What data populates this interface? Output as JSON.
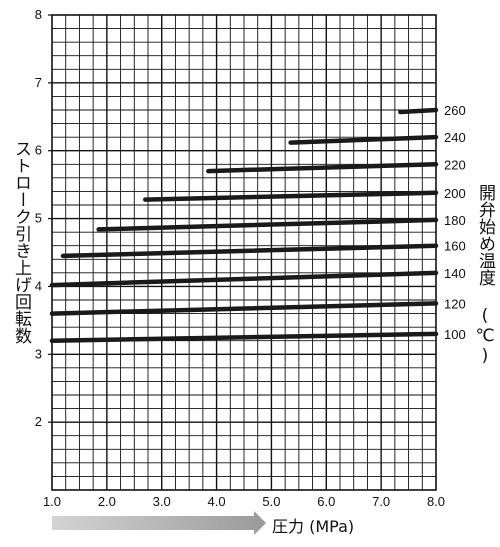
{
  "chart_data": {
    "type": "line",
    "xlabel": "圧力 (MPa)",
    "ylabel": "ストローク引き上げ回転数",
    "legend_title": "開弁始め温度 (℃)",
    "xlim": [
      1.0,
      8.0
    ],
    "ylim": [
      1,
      8
    ],
    "x_ticks": [
      "1.0",
      "2.0",
      "3.0",
      "4.0",
      "5.0",
      "6.0",
      "7.0",
      "8.0"
    ],
    "y_ticks": [
      "2",
      "3",
      "4",
      "5",
      "6",
      "7",
      "8"
    ],
    "grid": true,
    "series": [
      {
        "name": "100",
        "x": [
          1.0,
          8.0
        ],
        "y": [
          3.2,
          3.3
        ]
      },
      {
        "name": "120",
        "x": [
          1.0,
          8.0
        ],
        "y": [
          3.6,
          3.75
        ]
      },
      {
        "name": "140",
        "x": [
          1.0,
          8.0
        ],
        "y": [
          4.02,
          4.2
        ]
      },
      {
        "name": "160",
        "x": [
          1.2,
          8.0
        ],
        "y": [
          4.45,
          4.6
        ]
      },
      {
        "name": "180",
        "x": [
          1.85,
          8.0
        ],
        "y": [
          4.84,
          4.98
        ]
      },
      {
        "name": "200",
        "x": [
          2.7,
          8.0
        ],
        "y": [
          5.28,
          5.38
        ]
      },
      {
        "name": "220",
        "x": [
          3.85,
          8.0
        ],
        "y": [
          5.7,
          5.8
        ]
      },
      {
        "name": "240",
        "x": [
          5.35,
          8.0
        ],
        "y": [
          6.12,
          6.2
        ]
      },
      {
        "name": "260",
        "x": [
          7.35,
          8.0
        ],
        "y": [
          6.57,
          6.6
        ]
      }
    ]
  }
}
